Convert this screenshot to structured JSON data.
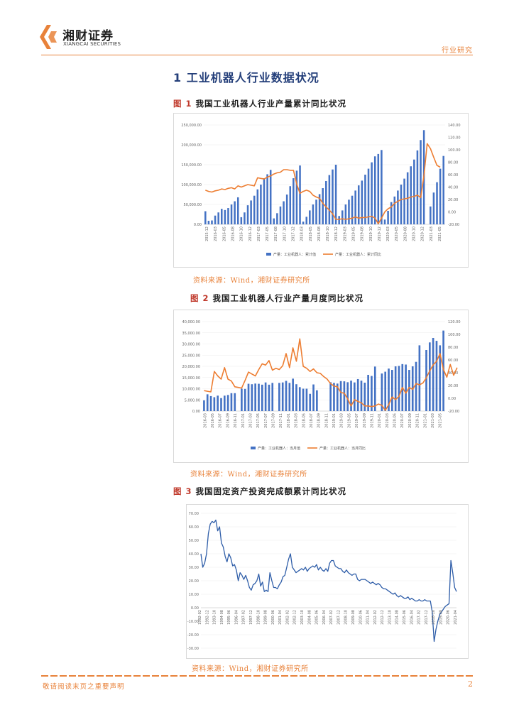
{
  "header": {
    "brand_cn": "湘财证券",
    "brand_en": "XIANGCAI SECURITIES",
    "category": "行业研究"
  },
  "section": {
    "number": "1",
    "title": "工业机器人行业数据状况"
  },
  "colors": {
    "accent": "#e8823a",
    "bar": "#4472c4",
    "line": "#ed7d31",
    "series": "#2e5da8",
    "title": "#243f7a"
  },
  "figures": [
    {
      "label": "图 1",
      "title": "我国工业机器人行业产量累计同比状况",
      "source": "资料来源：Wind，湘财证券研究所"
    },
    {
      "label": "图 2",
      "title": "我国工业机器人行业产量月度同比状况",
      "source": "资料来源：Wind，湘财证券研究所"
    },
    {
      "label": "图 3",
      "title": "我国固定资产投资完成额累计同比状况",
      "source": "资料来源：Wind，湘财证券研究所"
    }
  ],
  "chart_data": [
    {
      "type": "bar",
      "title": "我国工业机器人行业产量累计同比状况",
      "legend": [
        "产量：工业机器人：累计值",
        "产量：工业机器人：累计同比"
      ],
      "x_tick_labels": [
        "2015-12",
        "2016-03",
        "2016-05",
        "2016-08",
        "2016-10",
        "2016-12",
        "2017-03",
        "2017-05",
        "2017-08",
        "2017-10",
        "2017-12",
        "2018-03",
        "2018-05",
        "2018-08",
        "2018-10",
        "2018-12",
        "2019-03",
        "2019-05",
        "2019-08",
        "2019-10",
        "2019-12",
        "2020-03",
        "2020-05",
        "2020-08",
        "2020-10",
        "2020-12",
        "2021-03",
        "2021-05"
      ],
      "y_left_ticks": [
        "0.00",
        "50,000.00",
        "100,000.00",
        "150,000.00",
        "200,000.00",
        "250,000.00"
      ],
      "y_right_ticks": [
        "-20.00",
        "0.00",
        "20.00",
        "40.00",
        "60.00",
        "80.00",
        "100.00",
        "120.00",
        "140.00"
      ],
      "ylim_left": [
        0,
        250000
      ],
      "ylim_right": [
        -20,
        140
      ],
      "series": [
        {
          "name": "产量：工业机器人：累计值",
          "kind": "bar",
          "axis": "left",
          "values": [
            32996,
            9000,
            9800,
            22000,
            30000,
            39000,
            36000,
            41000,
            50000,
            58000,
            68000,
            18000,
            30000,
            48000,
            60000,
            72000,
            88000,
            100000,
            116000,
            126000,
            137000,
            15000,
            28000,
            45000,
            58000,
            75000,
            96000,
            116000,
            135000,
            148000,
            6800,
            19000,
            35000,
            50000,
            62000,
            76000,
            91000,
            109000,
            124000,
            138000,
            150000,
            21000,
            35000,
            50000,
            62000,
            72000,
            85000,
            98000,
            110000,
            125000,
            140000,
            156000,
            171000,
            177000,
            187000,
            12000,
            34000,
            56000,
            70000,
            85000,
            100000,
            115000,
            131000,
            146000,
            163000,
            186000,
            212000,
            237000,
            0,
            45000,
            80000,
            106000,
            140000,
            172000
          ]
        },
        {
          "name": "产量：工业机器人：累计同比",
          "kind": "line",
          "axis": "right",
          "values": [
            35,
            33,
            32,
            34,
            35,
            37,
            36,
            38,
            39,
            37,
            42,
            40,
            42,
            44,
            43,
            42,
            55,
            54,
            53,
            56,
            58,
            61,
            63,
            64,
            68,
            68,
            67,
            67,
            45,
            30,
            33,
            35,
            33,
            27,
            24,
            22,
            14,
            8,
            3,
            -3,
            -12,
            -12,
            -11,
            -12,
            -11,
            -10,
            -8,
            -10,
            -9,
            -9,
            -8,
            -7,
            -10,
            -19,
            -10,
            0,
            5,
            8,
            14,
            17,
            20,
            21,
            22,
            24,
            25,
            27,
            23,
            58,
            110,
            102,
            88,
            75,
            72
          ]
        }
      ]
    },
    {
      "type": "bar",
      "title": "我国工业机器人行业产量月度同比状况",
      "legend": [
        "产量：工业机器人：当月值",
        "产量：工业机器人：当月同比"
      ],
      "x_tick_labels": [
        "2016-03",
        "2016-05",
        "2016-07",
        "2016-09",
        "2016-11",
        "2017-01",
        "2017-03",
        "2017-05",
        "2017-07",
        "2017-09",
        "2017-11",
        "2018-01",
        "2018-03",
        "2018-05",
        "2018-07",
        "2018-09",
        "2018-11",
        "2019-01",
        "2019-03",
        "2019-05",
        "2019-07",
        "2019-09",
        "2019-11",
        "2020-01",
        "2020-03",
        "2020-05",
        "2020-07",
        "2020-09",
        "2020-11",
        "2021-01",
        "2021-03",
        "2021-05"
      ],
      "y_left_ticks": [
        "0.00",
        "5,000.00",
        "10,000.00",
        "15,000.00",
        "20,000.00",
        "25,000.00",
        "30,000.00",
        "35,000.00",
        "40,000.00"
      ],
      "y_right_ticks": [
        "-20.00",
        "0.00",
        "20.00",
        "40.00",
        "60.00",
        "80.00",
        "100.00",
        "120.00"
      ],
      "ylim_left": [
        0,
        40000
      ],
      "ylim_right": [
        -20,
        120
      ],
      "series": [
        {
          "name": "产量：工业机器人：当月值",
          "kind": "bar",
          "axis": "left",
          "values": [
            4800,
            7500,
            6700,
            6200,
            6900,
            5800,
            6900,
            7200,
            8000,
            8000,
            0,
            10000,
            9900,
            12200,
            12000,
            12300,
            12200,
            11800,
            12800,
            11800,
            12600,
            0,
            12600,
            12800,
            13500,
            12600,
            14500,
            12000,
            10700,
            10000,
            10000,
            7700,
            11900,
            9300,
            0,
            0,
            0,
            12900,
            12600,
            12300,
            13400,
            13300,
            12900,
            13600,
            12800,
            14300,
            13600,
            12700,
            16200,
            15700,
            19900,
            0,
            16800,
            17600,
            19000,
            18400,
            20000,
            20200,
            21000,
            20800,
            18400,
            20000,
            22000,
            29400,
            0,
            27300,
            30700,
            32700,
            31400,
            29400,
            36000
          ]
        },
        {
          "name": "产量：工业机器人：当月同比",
          "kind": "line",
          "axis": "right",
          "values": [
            12,
            11,
            10,
            42,
            35,
            30,
            48,
            30,
            27,
            18,
            17,
            16,
            28,
            41,
            38,
            35,
            45,
            54,
            52,
            59,
            44,
            47,
            45,
            51,
            70,
            48,
            79,
            58,
            93,
            50,
            47,
            42,
            46,
            40,
            39,
            34,
            30,
            23,
            19,
            18,
            9,
            8,
            -1,
            -12,
            -2,
            -5,
            -7,
            -12,
            -12,
            -13,
            -12,
            -9,
            -11,
            -19,
            -10,
            2,
            -2,
            3,
            17,
            8,
            17,
            14,
            23,
            21,
            24,
            32,
            43,
            52,
            58,
            70,
            45,
            33,
            53,
            36,
            48
          ]
        }
      ]
    },
    {
      "type": "line",
      "title": "我国固定资产投资完成额累计同比状况",
      "x_tick_labels": [
        "1992-02",
        "1992-12",
        "1993-10",
        "1994-08",
        "1995-06",
        "1996-04",
        "1997-02",
        "1997-12",
        "1998-10",
        "1999-08",
        "2000-06",
        "2001-04",
        "2002-02",
        "2002-12",
        "2003-10",
        "2004-08",
        "2005-06",
        "2006-04",
        "2007-02",
        "2007-12",
        "2008-10",
        "2009-08",
        "2010-06",
        "2011-04",
        "2012-02",
        "2012-12",
        "2013-10",
        "2014-08",
        "2015-06",
        "2016-04",
        "2017-02",
        "2017-12",
        "2018-10",
        "2019-08",
        "2020-06",
        "2021-04"
      ],
      "y_ticks": [
        "-30.00",
        "-20.00",
        "-10.00",
        "0.00",
        "10.00",
        "20.00",
        "30.00",
        "40.00",
        "50.00",
        "60.00",
        "70.00"
      ],
      "ylim": [
        -30,
        70
      ],
      "series": [
        {
          "name": "固定资产投资完成额：累计同比",
          "values": [
            40,
            30,
            33,
            40,
            55,
            62,
            64,
            63,
            65,
            57,
            60,
            48,
            45,
            38,
            34,
            40,
            37,
            31,
            32,
            28,
            20,
            26,
            24,
            21,
            24,
            20,
            15,
            13,
            17,
            18,
            20,
            25,
            16,
            19,
            12,
            13,
            12,
            26,
            20,
            15,
            15,
            14,
            17,
            19,
            23,
            24,
            30,
            36,
            40,
            30,
            28,
            26,
            27,
            28,
            29,
            28,
            30,
            27,
            29,
            30,
            31,
            30,
            32,
            28,
            30,
            28,
            27,
            29,
            27,
            33,
            35,
            35,
            31,
            30,
            29,
            29,
            27,
            26,
            28,
            26,
            25,
            24,
            25,
            25,
            21,
            20,
            21,
            21,
            21,
            20,
            19,
            18,
            19,
            18,
            17,
            18,
            17,
            15,
            14,
            14,
            13,
            12,
            11,
            10,
            11,
            9,
            8,
            9,
            8,
            7,
            7,
            8,
            6,
            7,
            6,
            5,
            5,
            6,
            5,
            5,
            6,
            5,
            5,
            5,
            -3,
            -25,
            -16,
            -10,
            -5,
            -3,
            -1,
            1,
            2,
            3,
            35,
            26,
            15,
            12
          ]
        }
      ]
    }
  ],
  "footer": {
    "disclaimer": "敬请阅读末页之重要声明",
    "page": "2"
  }
}
